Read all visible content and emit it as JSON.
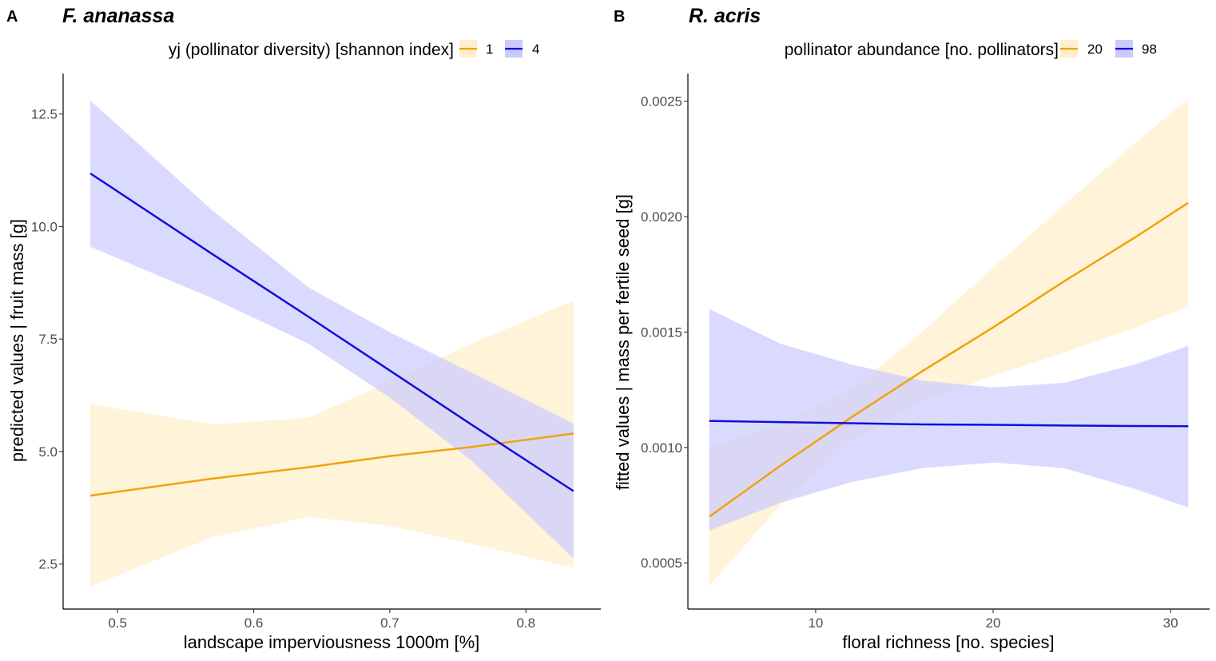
{
  "panels": [
    {
      "letter": "A",
      "title": "F. ananassa",
      "legend_title": "yj (pollinator diversity) [shannon index]",
      "xlabel": "landscape imperviousness 1000m [%]",
      "ylabel": "predicted values | fruit mass [g]"
    },
    {
      "letter": "B",
      "title": "R. acris",
      "legend_title": "pollinator abundance [no. pollinators]",
      "xlabel": "floral richness [no. species]",
      "ylabel": "fitted values | mass per fertile seed [g]"
    }
  ],
  "colors": {
    "orange_line": "#F0A30A",
    "orange_band": "#FFEFCC",
    "blue_line": "#1010D8",
    "blue_band": "#CACAFF"
  },
  "chart_data": [
    {
      "type": "line",
      "title": "F. ananassa",
      "xlabel": "landscape imperviousness 1000m [%]",
      "ylabel": "predicted values | fruit mass [g]",
      "xlim": [
        0.46,
        0.855
      ],
      "ylim": [
        1.5,
        13.4
      ],
      "xticks": [
        0.5,
        0.6,
        0.7,
        0.8
      ],
      "xtick_labels": [
        "0.5",
        "0.6",
        "0.7",
        "0.8"
      ],
      "yticks": [
        2.5,
        5.0,
        7.5,
        10.0,
        12.5
      ],
      "ytick_labels": [
        "2.5",
        "5.0",
        "7.5",
        "10.0",
        "12.5"
      ],
      "grid": false,
      "legend_position": "top",
      "series": [
        {
          "name": "1",
          "color": "orange",
          "x": [
            0.48,
            0.57,
            0.64,
            0.7,
            0.76,
            0.835
          ],
          "y": [
            4.02,
            4.4,
            4.65,
            4.9,
            5.1,
            5.4
          ],
          "lower": [
            2.0,
            3.1,
            3.55,
            3.35,
            2.95,
            2.42
          ],
          "upper": [
            6.05,
            5.6,
            5.75,
            6.55,
            7.4,
            8.35
          ]
        },
        {
          "name": "4",
          "color": "blue",
          "x": [
            0.48,
            0.57,
            0.64,
            0.7,
            0.76,
            0.835
          ],
          "y": [
            11.18,
            9.38,
            8.0,
            6.8,
            5.6,
            4.12
          ],
          "lower": [
            9.55,
            8.4,
            7.4,
            6.2,
            4.8,
            2.62
          ],
          "upper": [
            12.8,
            10.35,
            8.65,
            7.65,
            6.75,
            5.62
          ]
        }
      ]
    },
    {
      "type": "line",
      "title": "R. acris",
      "xlabel": "floral richness [no. species]",
      "ylabel": "fitted values | mass per fertile seed [g]",
      "xlim": [
        2.8,
        32.2
      ],
      "ylim": [
        0.0003,
        0.00262
      ],
      "xticks": [
        10,
        20,
        30
      ],
      "xtick_labels": [
        "10",
        "20",
        "30"
      ],
      "yticks": [
        0.0005,
        0.001,
        0.0015,
        0.002,
        0.0025
      ],
      "ytick_labels": [
        "0.0005",
        "0.0010",
        "0.0015",
        "0.0020",
        "0.0025"
      ],
      "grid": false,
      "legend_position": "top",
      "series": [
        {
          "name": "20",
          "color": "orange",
          "x": [
            4,
            8,
            12,
            16,
            20,
            24,
            28,
            31
          ],
          "y": [
            0.0007,
            0.00092,
            0.00113,
            0.00133,
            0.00152,
            0.00172,
            0.00191,
            0.00206
          ],
          "lower": [
            0.0004,
            0.00075,
            0.00103,
            0.0012,
            0.00131,
            0.00141,
            0.00152,
            0.00161
          ],
          "upper": [
            0.001,
            0.0011,
            0.00125,
            0.0015,
            0.00178,
            0.00205,
            0.00232,
            0.00251
          ]
        },
        {
          "name": "98",
          "color": "blue",
          "x": [
            4,
            8,
            12,
            16,
            20,
            24,
            28,
            31
          ],
          "y": [
            0.001115,
            0.00111,
            0.001105,
            0.0011,
            0.001098,
            0.001095,
            0.001093,
            0.001092
          ],
          "lower": [
            0.00064,
            0.00076,
            0.00085,
            0.00091,
            0.000935,
            0.00091,
            0.00082,
            0.00074
          ],
          "upper": [
            0.0016,
            0.00145,
            0.00136,
            0.00129,
            0.00126,
            0.00128,
            0.00136,
            0.00144
          ]
        }
      ]
    }
  ]
}
